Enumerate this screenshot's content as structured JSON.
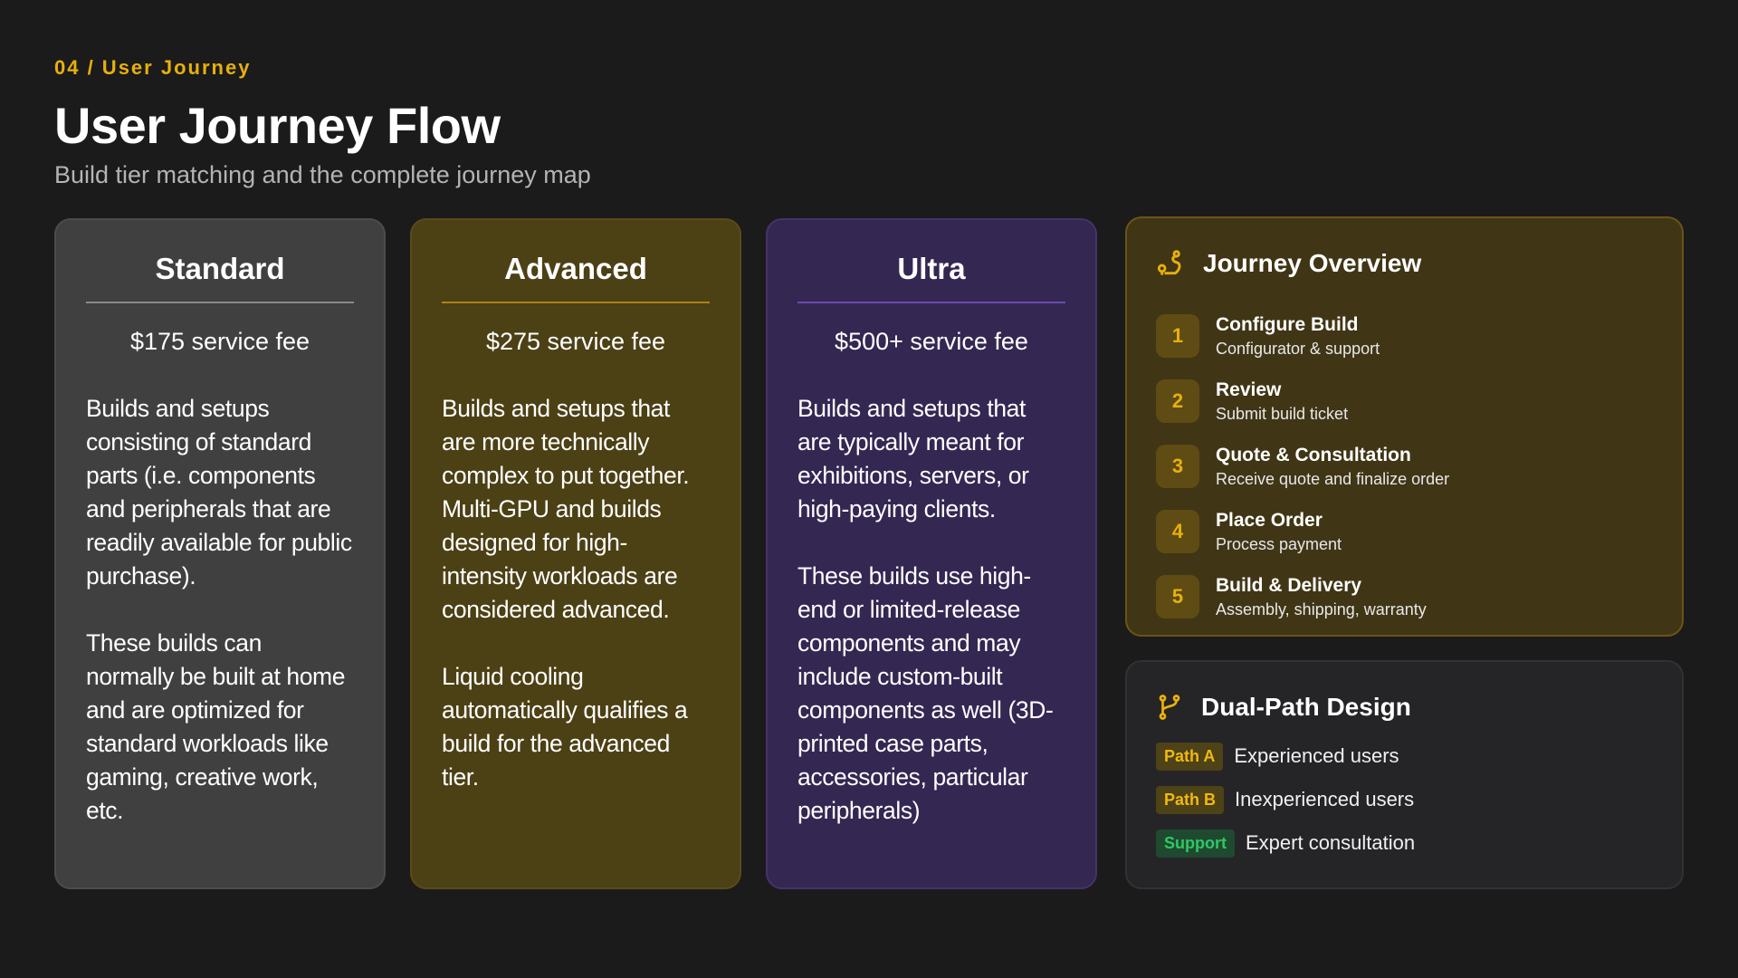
{
  "header": {
    "eyebrow": "04 / User Journey",
    "title": "User Journey Flow",
    "subtitle": "Build tier matching and the complete journey map"
  },
  "tiers": [
    {
      "name": "Standard",
      "price": "$175 service fee",
      "paragraphs": [
        "Builds and setups consisting of standard parts (i.e. components and peripherals that are readily available for public purchase).",
        "These builds can normally be built at home and are optimized for standard workloads like gaming, creative work, etc."
      ]
    },
    {
      "name": "Advanced",
      "price": "$275 service fee",
      "paragraphs": [
        "Builds and setups that are more technically complex to put together. Multi-GPU and builds designed for high-intensity workloads are considered advanced.",
        "Liquid cooling automatically qualifies a build for the advanced tier."
      ]
    },
    {
      "name": "Ultra",
      "price": "$500+ service fee",
      "paragraphs": [
        "Builds and setups that are typically meant for exhibitions, servers, or high-paying clients.",
        "These builds use high-end or limited-release components and may include custom-built components as well (3D-printed case parts, accessories, particular peripherals)"
      ]
    }
  ],
  "journey": {
    "title": "Journey Overview",
    "icon": "route-icon",
    "steps": [
      {
        "num": "1",
        "title": "Configure Build",
        "desc": "Configurator & support"
      },
      {
        "num": "2",
        "title": "Review",
        "desc": "Submit build ticket"
      },
      {
        "num": "3",
        "title": "Quote & Consultation",
        "desc": "Receive quote and finalize order"
      },
      {
        "num": "4",
        "title": "Place Order",
        "desc": "Process payment"
      },
      {
        "num": "5",
        "title": "Build & Delivery",
        "desc": "Assembly, shipping, warranty"
      }
    ]
  },
  "dual": {
    "title": "Dual-Path Design",
    "icon": "git-branch-icon",
    "paths": [
      {
        "badge": "Path A",
        "text": "Experienced users"
      },
      {
        "badge": "Path B",
        "text": "Inexperienced users"
      },
      {
        "badge": "Support",
        "text": "Expert consultation"
      }
    ]
  },
  "colors": {
    "accent": "#e8b00c",
    "support": "#2fc865",
    "background": "#1b1b1b"
  }
}
